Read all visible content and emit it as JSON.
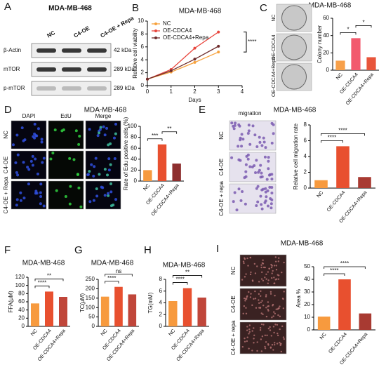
{
  "blot": {
    "panel": "A",
    "title": "MDA-MB-468",
    "lanes": [
      "NC",
      "C4-OE",
      "C4-OE + Repa"
    ],
    "rows": [
      {
        "label": "β-Actin",
        "size": "42 kDa"
      },
      {
        "label": "mTOR",
        "size": "289 kDa"
      },
      {
        "label": "p-mTOR",
        "size": "289 kDa"
      }
    ]
  },
  "chart_data": [
    {
      "type": "line",
      "panel": "B",
      "title": "MDA-MB-468",
      "x_label": "Days",
      "y_label": "Relative cell viability",
      "x": [
        0,
        1,
        2,
        3
      ],
      "xlim": [
        0,
        4
      ],
      "xticks": [
        0,
        1,
        2,
        3,
        4
      ],
      "ylim": [
        0,
        10
      ],
      "yticks": [
        0,
        2,
        4,
        6,
        8,
        10
      ],
      "legend": "upper left",
      "series": [
        {
          "name": "NC",
          "color": "#f7a23d",
          "values": [
            1,
            2.1,
            3.6,
            5.2
          ]
        },
        {
          "name": "OE-CDCA4",
          "color": "#e8453c",
          "values": [
            1,
            2.5,
            5.8,
            8.3
          ]
        },
        {
          "name": "OE-CDCA4+Repa",
          "color": "#6e2c2c",
          "values": [
            1,
            2.3,
            4.1,
            6.1
          ]
        }
      ],
      "annotations": [
        "****"
      ]
    },
    {
      "type": "bar",
      "panel": "C",
      "title": "MDA-MB-468",
      "y_label": "Colony number",
      "image_labels": [
        "NC",
        "OE-CDCA4",
        "OE-CDCA4+Repa"
      ],
      "categories": [
        "NC",
        "OE-CDCA4",
        "OE-CDCA4+Repa"
      ],
      "values": [
        11,
        37,
        15
      ],
      "colors": [
        "#f7a04a",
        "#f25a6e",
        "#e8553b"
      ],
      "ylim": [
        0,
        60
      ],
      "yticks": [
        0,
        20,
        40,
        60
      ],
      "annotations": [
        "*",
        "*"
      ]
    },
    {
      "type": "bar",
      "panel": "D",
      "title": "MDA-MB-468",
      "y_label": "Rate of Edu positive cells (%)",
      "image_columns": [
        "DAPI",
        "EdU",
        "Merge"
      ],
      "image_labels": [
        "NC",
        "C4-OE",
        "C4-OE + Repa"
      ],
      "categories": [
        "NC",
        "OE-CDCA4",
        "OE-CDCA4+Repa"
      ],
      "values": [
        20,
        67,
        32
      ],
      "colors": [
        "#f79a3e",
        "#e8502f",
        "#8e2f2f"
      ],
      "ylim": [
        0,
        100
      ],
      "yticks": [
        0,
        20,
        40,
        60,
        80,
        100
      ],
      "annotations": [
        "***",
        "**"
      ]
    },
    {
      "type": "bar",
      "panel": "E",
      "title": "MDA-MB-468",
      "caption": "migration",
      "y_label": "Relative cell migration rate",
      "image_labels": [
        "NC",
        "C4-OE",
        "C4-OE + repa"
      ],
      "categories": [
        "NC",
        "OE-CDCA4",
        "OE-CDCA4+Repa"
      ],
      "values": [
        1.0,
        5.3,
        1.4
      ],
      "colors": [
        "#f79a3e",
        "#e8502f",
        "#a83a32"
      ],
      "ylim": [
        0,
        8
      ],
      "yticks": [
        0,
        2,
        4,
        6,
        8
      ],
      "annotations": [
        "****",
        "****"
      ]
    },
    {
      "type": "bar",
      "panel": "F",
      "title": "MDA-MB-468",
      "y_label": "FFA(μM)",
      "categories": [
        "NC",
        "OE-CDCA4",
        "OE-CDCA4+Repa"
      ],
      "values": [
        56,
        85,
        72
      ],
      "colors": [
        "#f79a3e",
        "#e8502f",
        "#c0463a"
      ],
      "ylim": [
        0,
        120
      ],
      "yticks": [
        0,
        20,
        40,
        60,
        80,
        100,
        120
      ],
      "annotations": [
        "****",
        "**"
      ]
    },
    {
      "type": "bar",
      "panel": "G",
      "title": "MDA-MB-468",
      "y_label": "TC(μM)",
      "categories": [
        "NC",
        "OE-CDCA4",
        "OE-CDCA4+Repa"
      ],
      "values": [
        158,
        210,
        170
      ],
      "colors": [
        "#f79a3e",
        "#e8502f",
        "#c0463a"
      ],
      "ylim": [
        0,
        250
      ],
      "yticks": [
        0,
        50,
        100,
        150,
        200,
        250
      ],
      "annotations": [
        "****",
        "ns"
      ]
    },
    {
      "type": "bar",
      "panel": "H",
      "title": "MDA-MB-468",
      "y_label": "TG(mM)",
      "categories": [
        "NC",
        "OE-CDCA4",
        "OE-CDCA4+Repa"
      ],
      "values": [
        4.3,
        6.5,
        4.9
      ],
      "colors": [
        "#f79a3e",
        "#e8502f",
        "#c0463a"
      ],
      "ylim": [
        0,
        8
      ],
      "yticks": [
        0,
        2,
        4,
        6,
        8
      ],
      "annotations": [
        "****",
        "**"
      ]
    },
    {
      "type": "bar",
      "panel": "I",
      "title": "MDA-MB-468",
      "y_label": "Area %",
      "image_labels": [
        "NC",
        "C4-OE",
        "C4-OE + repa"
      ],
      "categories": [
        "NC",
        "OE-CDCA4",
        "OE-CDCA4+Repa"
      ],
      "values": [
        10.5,
        40,
        13
      ],
      "colors": [
        "#f79a3e",
        "#e8502f",
        "#a83a32"
      ],
      "ylim": [
        0,
        50
      ],
      "yticks": [
        0,
        10,
        20,
        30,
        40,
        50
      ],
      "annotations": [
        "****",
        "****"
      ]
    }
  ]
}
